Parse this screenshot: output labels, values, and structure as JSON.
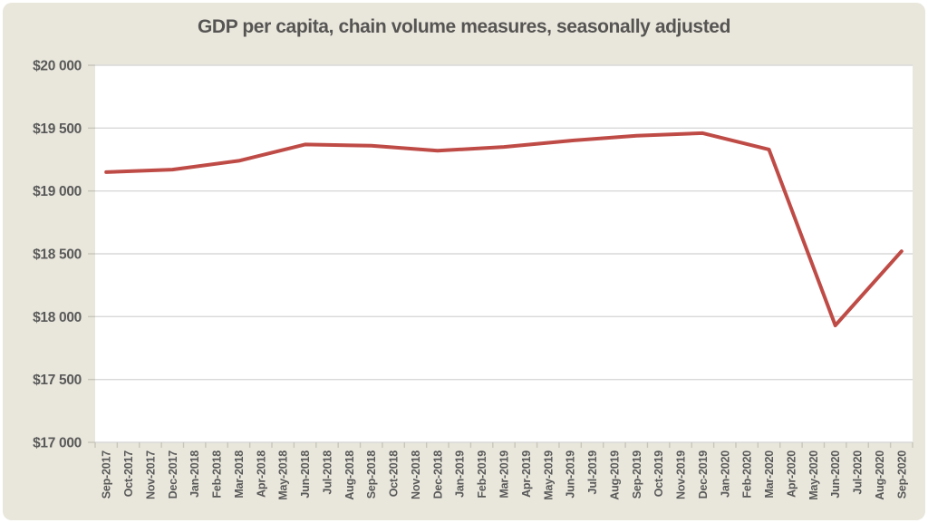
{
  "page": {
    "background_color": "#ffffff",
    "canvas_color": "#e9e7dc"
  },
  "chart_data": {
    "type": "line",
    "title": "GDP per capita, chain volume measures, seasonally adjusted",
    "xlabel": "",
    "ylabel": "",
    "ylim": [
      17000,
      20000
    ],
    "ytick_step": 500,
    "grid": "horizontal",
    "legend": "none",
    "y_tick_labels": [
      "$20 000",
      "$19 500",
      "$19 000",
      "$18 500",
      "$18 000",
      "$17 500",
      "$17 000"
    ],
    "x_tick_labels": [
      "Sep-2017",
      "Oct-2017",
      "Nov-2017",
      "Dec-2017",
      "Jan-2018",
      "Feb-2018",
      "Mar-2018",
      "Apr-2018",
      "May-2018",
      "Jun-2018",
      "Jul-2018",
      "Aug-2018",
      "Sep-2018",
      "Oct-2018",
      "Nov-2018",
      "Dec-2018",
      "Jan-2019",
      "Feb-2019",
      "Mar-2019",
      "Apr-2019",
      "May-2019",
      "Jun-2019",
      "Jul-2019",
      "Aug-2019",
      "Sep-2019",
      "Oct-2019",
      "Nov-2019",
      "Dec-2019",
      "Jan-2020",
      "Feb-2020",
      "Mar-2020",
      "Apr-2020",
      "May-2020",
      "Jun-2020",
      "Jul-2020",
      "Aug-2020",
      "Sep-2020"
    ],
    "series": [
      {
        "name": "GDP per capita",
        "color": "#bf4b46",
        "x": [
          "Sep-2017",
          "Dec-2017",
          "Mar-2018",
          "Jun-2018",
          "Sep-2018",
          "Dec-2018",
          "Mar-2019",
          "Jun-2019",
          "Sep-2019",
          "Dec-2019",
          "Mar-2020",
          "Jun-2020",
          "Sep-2020"
        ],
        "values": [
          19150,
          19170,
          19240,
          19370,
          19360,
          19320,
          19350,
          19400,
          19440,
          19460,
          19330,
          17930,
          18520
        ]
      }
    ],
    "colors": {
      "plot_bg": "#ffffff",
      "grid": "#d9d9d9",
      "tick": "#c8c6bb",
      "text": "#595959",
      "line": "#bf4b46"
    }
  }
}
